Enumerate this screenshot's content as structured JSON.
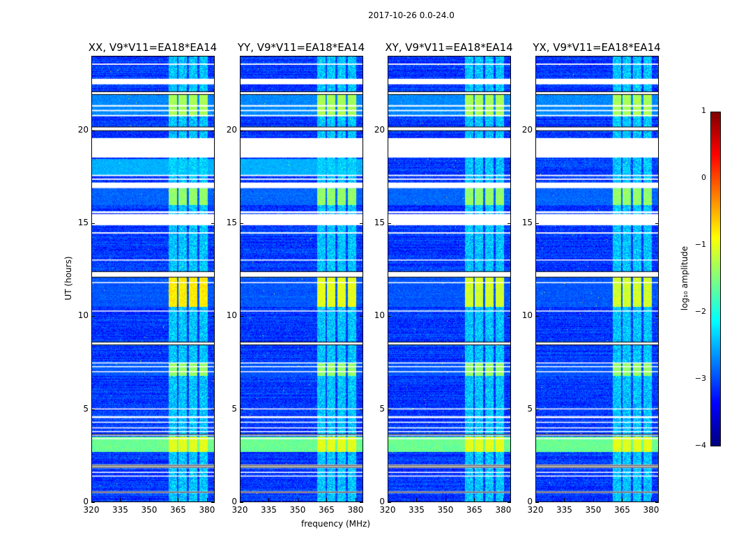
{
  "suptitle": "2017-10-26 0.0-24.0",
  "xlabel": "frequency (MHz)",
  "ylabel": "UT (hours)",
  "chart_data": [
    {
      "type": "heatmap",
      "title": "XX, V9*V11=EA18*EA14",
      "xlim": [
        320,
        384
      ],
      "ylim": [
        0,
        24
      ],
      "xticks": [
        "320",
        "335",
        "350",
        "365",
        "380"
      ],
      "yticks": [
        "0",
        "5",
        "10",
        "15",
        "20"
      ],
      "extra_bright_1750": true,
      "rfi_boost": 0.4
    },
    {
      "type": "heatmap",
      "title": "YY, V9*V11=EA18*EA14",
      "xlim": [
        320,
        384
      ],
      "ylim": [
        0,
        24
      ],
      "xticks": [
        "320",
        "335",
        "350",
        "365",
        "380"
      ],
      "yticks": [
        "0",
        "5",
        "10",
        "15",
        "20"
      ],
      "extra_bright_1750": true,
      "rfi_boost": 0.2
    },
    {
      "type": "heatmap",
      "title": "XY, V9*V11=EA18*EA14",
      "xlim": [
        320,
        384
      ],
      "ylim": [
        0,
        24
      ],
      "xticks": [
        "320",
        "335",
        "350",
        "365",
        "380"
      ],
      "yticks": [
        "0",
        "5",
        "10",
        "15",
        "20"
      ],
      "extra_bright_1750": false,
      "rfi_boost": 0.1
    },
    {
      "type": "heatmap",
      "title": "YX, V9*V11=EA18*EA14",
      "xlim": [
        320,
        384
      ],
      "ylim": [
        0,
        24
      ],
      "xticks": [
        "320",
        "335",
        "350",
        "365",
        "380"
      ],
      "yticks": [
        "0",
        "5",
        "10",
        "15",
        "20"
      ],
      "extra_bright_1750": false,
      "rfi_boost": 0.1
    }
  ],
  "shared": {
    "background_log_amp": -3.1,
    "rfi_channels_mhz": [
      [
        360,
        364.5
      ],
      [
        365,
        369.5
      ],
      [
        370.5,
        375
      ],
      [
        376,
        380.5
      ]
    ],
    "bright_periods_hours": [
      {
        "range": [
          2.7,
          3.5
        ],
        "broadband": -1.6,
        "rfi": -1.0
      },
      {
        "range": [
          10.5,
          12.3
        ],
        "broadband": -3.0,
        "rfi": -1.2
      },
      {
        "range": [
          6.8,
          7.5
        ],
        "broadband": -3.0,
        "rfi": -1.4
      },
      {
        "range": [
          16.0,
          16.9
        ],
        "broadband": -2.9,
        "rfi": -1.4
      },
      {
        "range": [
          20.8,
          22.0
        ],
        "broadband": -2.7,
        "rfi": -1.3
      }
    ],
    "flagged_hours": [
      [
        23.55,
        23.62
      ],
      [
        22.5,
        22.8
      ],
      [
        21.95,
        22.1
      ],
      [
        21.3,
        21.38
      ],
      [
        21.05,
        21.12
      ],
      [
        20.78,
        20.85
      ],
      [
        20.0,
        20.2
      ],
      [
        18.55,
        19.6
      ],
      [
        17.55,
        17.62
      ],
      [
        17.35,
        17.42
      ],
      [
        16.9,
        17.2
      ],
      [
        15.55,
        15.65
      ],
      [
        14.9,
        15.5
      ],
      [
        14.45,
        14.52
      ],
      [
        13.0,
        13.05
      ],
      [
        12.1,
        12.4
      ],
      [
        11.78,
        11.83
      ],
      [
        10.25,
        10.3
      ],
      [
        8.45,
        8.6
      ],
      [
        7.45,
        7.5
      ],
      [
        7.25,
        7.3
      ],
      [
        6.98,
        7.03
      ],
      [
        4.97,
        5.02
      ],
      [
        4.5,
        4.6
      ],
      [
        4.25,
        4.3
      ],
      [
        3.95,
        4.0
      ],
      [
        3.75,
        3.8
      ],
      [
        3.55,
        3.62
      ],
      [
        3.38,
        3.42
      ],
      [
        1.8,
        2.0
      ],
      [
        1.55,
        1.6
      ],
      [
        1.35,
        1.4
      ],
      [
        0.45,
        0.55
      ]
    ],
    "black_lines_hours": [
      22.1,
      21.95,
      20.2,
      20.0,
      12.4,
      12.1,
      8.6,
      8.45,
      3.62,
      1.95,
      1.85,
      0.5
    ]
  },
  "colorbar": {
    "label": "log₁₀ amplitude",
    "vmin": -4,
    "vmax": 1,
    "colormap": "jet",
    "ticks": [
      "1",
      "0",
      "−1",
      "−2",
      "−3",
      "−4"
    ]
  }
}
